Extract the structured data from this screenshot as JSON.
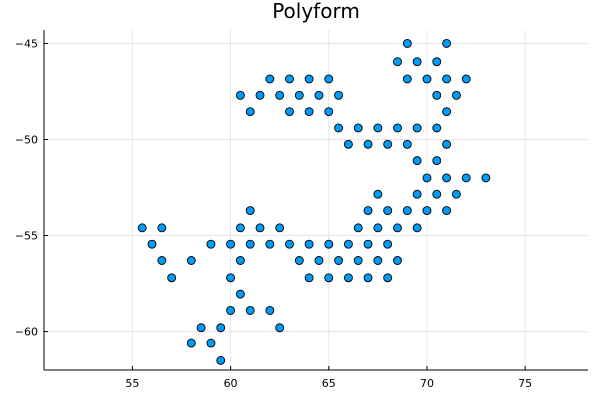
{
  "chart_data": {
    "type": "scatter",
    "title": "Polyform",
    "xlabel": "",
    "ylabel": "",
    "xlim": [
      50.5,
      78.2
    ],
    "ylim": [
      -62.0,
      -44.3
    ],
    "xticks": [
      55,
      60,
      65,
      70,
      75
    ],
    "yticks": [
      -45,
      -50,
      -55,
      -60
    ],
    "xtick_labels": [
      "55",
      "60",
      "65",
      "70",
      "75"
    ],
    "ytick_labels": [
      "−45",
      "−50",
      "−55",
      "−60"
    ],
    "grid": true,
    "legend": "none",
    "marker_color": "#009af9",
    "series": [
      {
        "x": [
          69.0,
          71.0,
          68.5,
          69.5,
          70.5,
          62.0,
          63.0,
          64.0,
          65.0,
          69.0,
          70.0,
          71.0,
          72.0,
          60.5,
          61.5,
          62.5,
          63.5,
          64.5,
          65.5,
          70.5,
          71.5,
          61.0,
          63.0,
          64.0,
          65.0,
          71.0,
          65.5,
          66.5,
          67.5,
          68.5,
          69.5,
          70.5,
          66.0,
          67.0,
          68.0,
          69.0,
          71.0,
          69.5,
          70.5,
          70.0,
          71.0,
          72.0,
          73.0,
          67.5,
          69.5,
          70.5,
          71.5,
          61.0,
          67.0,
          68.0,
          69.0,
          70.0,
          71.0,
          55.5,
          56.5,
          60.5,
          61.5,
          62.5,
          66.5,
          67.5,
          68.5,
          69.5,
          56.0,
          59.0,
          60.0,
          61.0,
          62.0,
          63.0,
          64.0,
          65.0,
          66.0,
          67.0,
          68.0,
          56.5,
          58.0,
          60.5,
          63.5,
          64.5,
          65.5,
          66.5,
          67.5,
          68.5,
          57.0,
          60.0,
          64.0,
          65.0,
          66.0,
          67.0,
          68.0,
          60.5,
          60.0,
          61.0,
          62.0,
          58.5,
          59.5,
          62.5,
          58.0,
          59.0,
          59.5
        ],
        "y": [
          -45.0,
          -45.0,
          -45.95,
          -45.95,
          -45.95,
          -46.85,
          -46.85,
          -46.85,
          -46.85,
          -46.85,
          -46.85,
          -46.85,
          -46.85,
          -47.7,
          -47.7,
          -47.7,
          -47.7,
          -47.7,
          -47.7,
          -47.7,
          -47.7,
          -48.55,
          -48.55,
          -48.55,
          -48.55,
          -48.55,
          -49.4,
          -49.4,
          -49.4,
          -49.4,
          -49.4,
          -49.4,
          -50.25,
          -50.25,
          -50.25,
          -50.25,
          -50.25,
          -51.1,
          -51.1,
          -52.0,
          -52.0,
          -52.0,
          -52.0,
          -52.85,
          -52.85,
          -52.85,
          -52.85,
          -53.7,
          -53.7,
          -53.7,
          -53.7,
          -53.7,
          -53.7,
          -54.6,
          -54.6,
          -54.6,
          -54.6,
          -54.6,
          -54.6,
          -54.6,
          -54.6,
          -54.6,
          -55.45,
          -55.45,
          -55.45,
          -55.45,
          -55.45,
          -55.45,
          -55.45,
          -55.45,
          -55.45,
          -55.45,
          -55.45,
          -56.3,
          -56.3,
          -56.3,
          -56.3,
          -56.3,
          -56.3,
          -56.3,
          -56.3,
          -56.3,
          -57.2,
          -57.2,
          -57.2,
          -57.2,
          -57.2,
          -57.2,
          -57.2,
          -58.05,
          -58.9,
          -58.9,
          -58.9,
          -59.8,
          -59.8,
          -59.8,
          -60.6,
          -60.6,
          -61.5
        ]
      }
    ]
  }
}
